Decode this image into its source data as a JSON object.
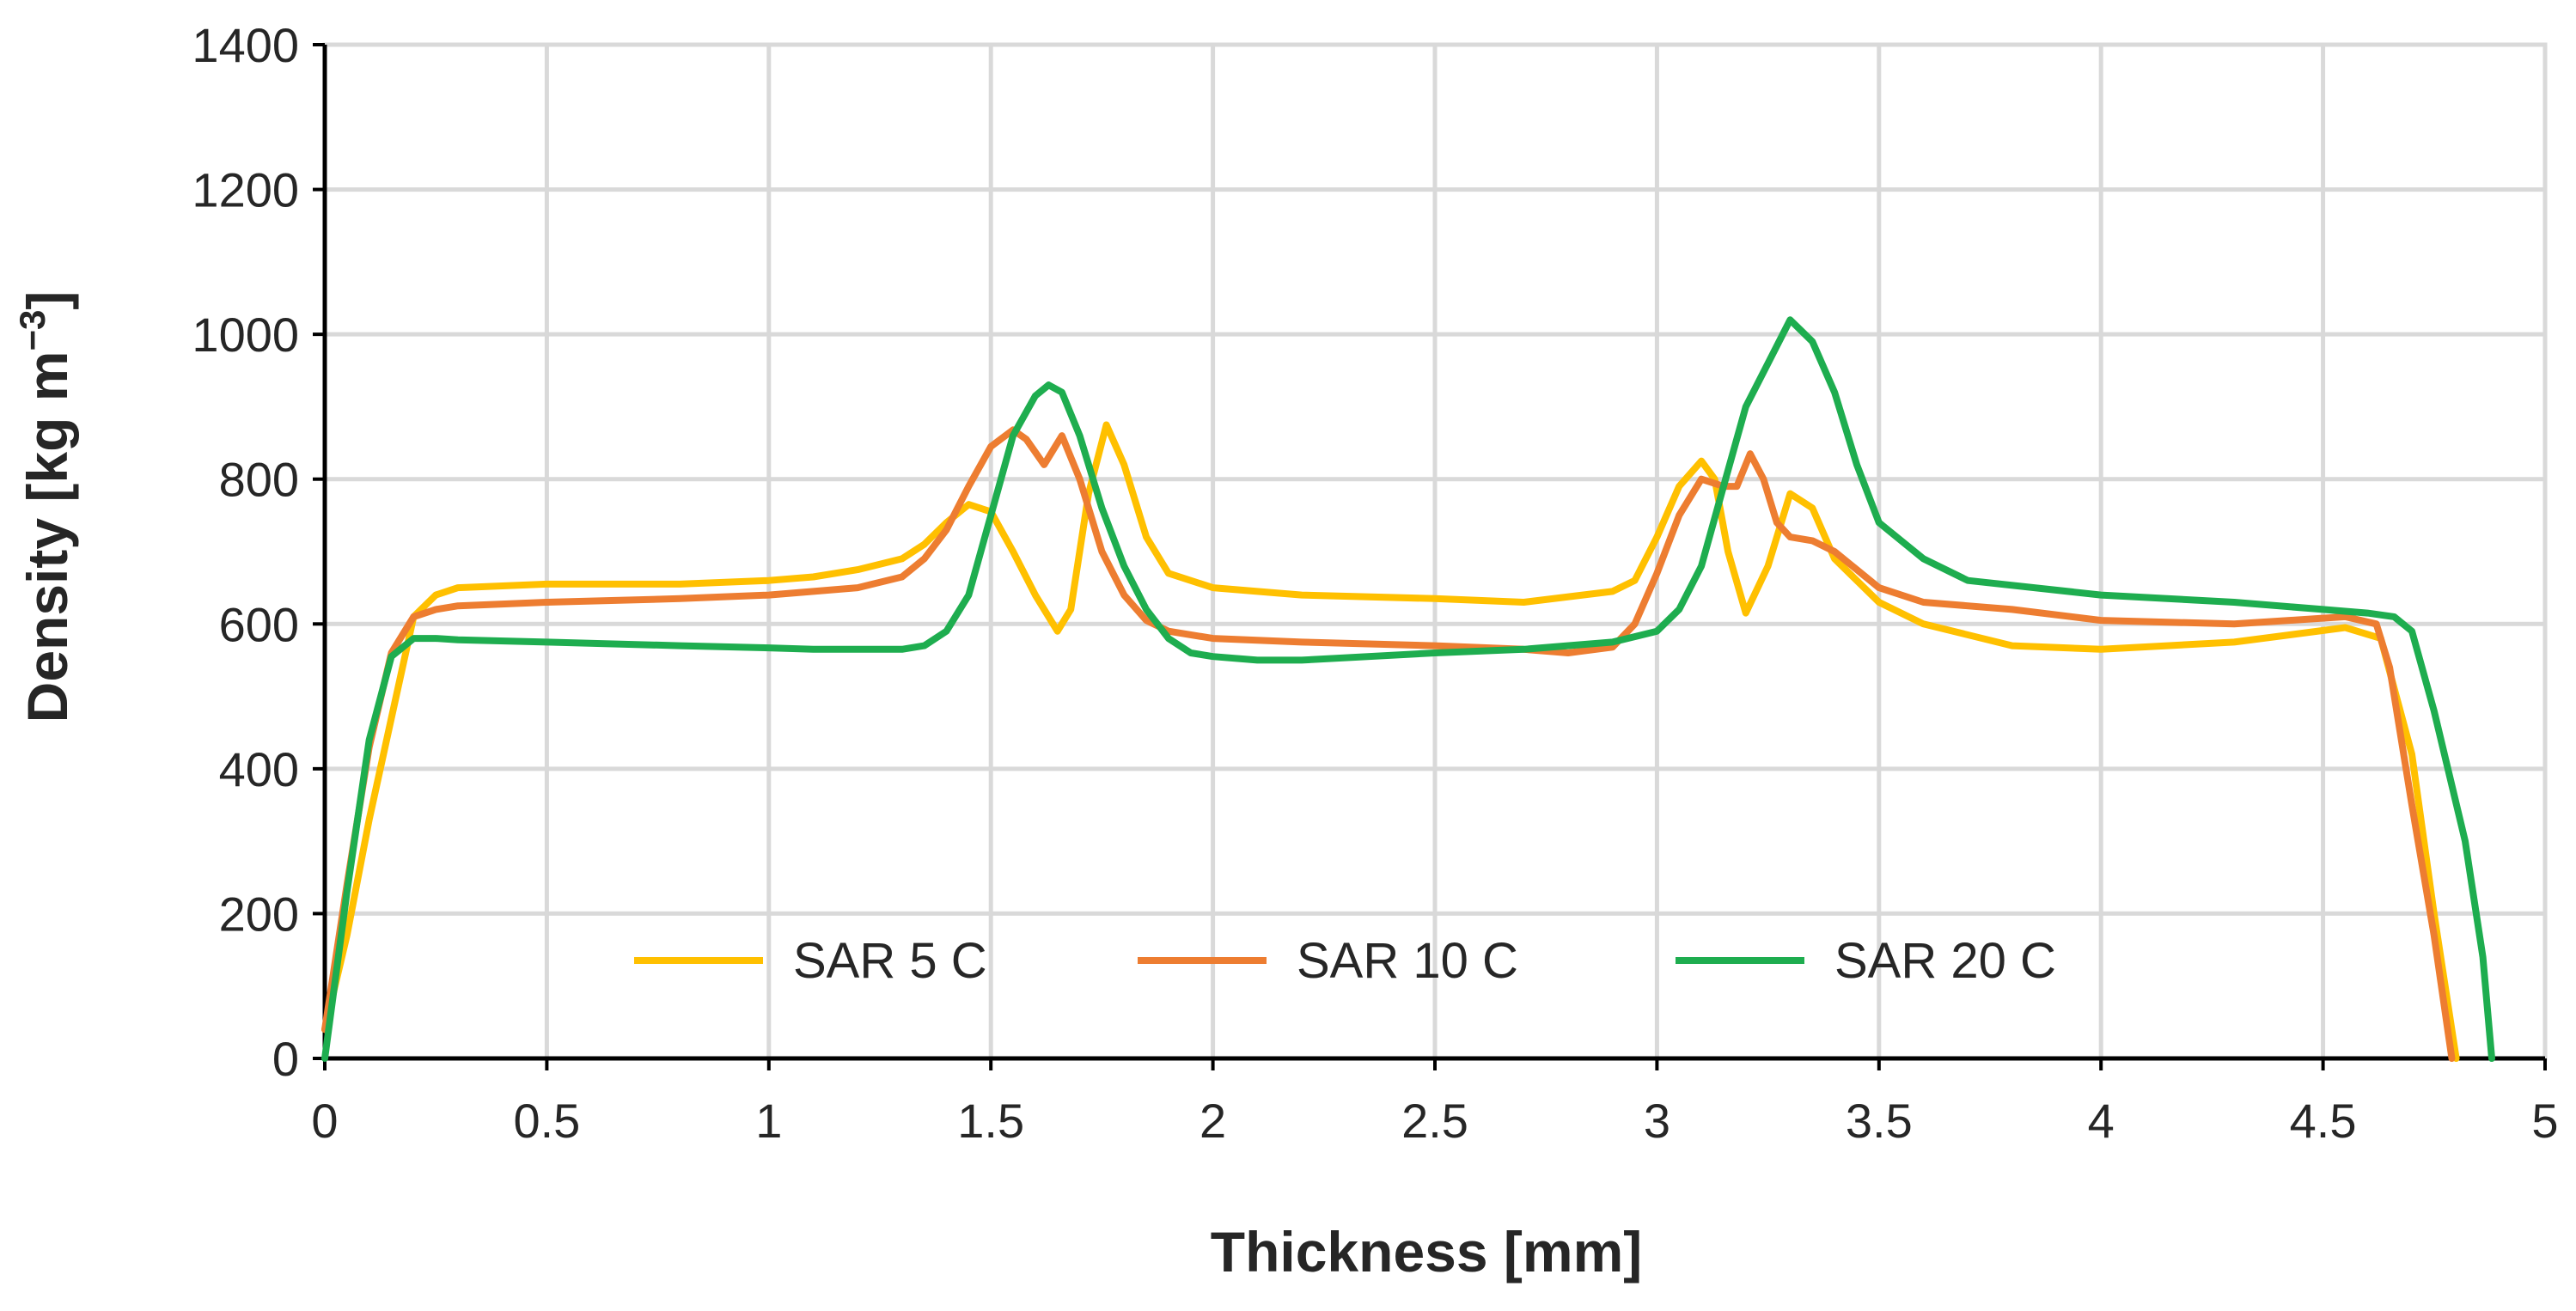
{
  "chart_data": {
    "type": "line",
    "title": "",
    "xlabel": "Thickness [mm]",
    "ylabel_main": "Density [kg m",
    "ylabel_sup": "−3",
    "ylabel_close": "]",
    "xlim": [
      0,
      5
    ],
    "ylim": [
      0,
      1400
    ],
    "xticks": [
      0,
      0.5,
      1,
      1.5,
      2,
      2.5,
      3,
      3.5,
      4,
      4.5,
      5
    ],
    "xtick_labels": [
      "0",
      "0.5",
      "1",
      "1.5",
      "2",
      "2.5",
      "3",
      "3.5",
      "4",
      "4.5",
      "5"
    ],
    "yticks": [
      0,
      200,
      400,
      600,
      800,
      1000,
      1200,
      1400
    ],
    "ytick_labels": [
      "0",
      "200",
      "400",
      "600",
      "800",
      "1000",
      "1200",
      "1400"
    ],
    "grid": true,
    "legend_position": "bottom-center",
    "series": [
      {
        "name": "SAR 5 C",
        "color": "#ffc000",
        "x": [
          0,
          0.05,
          0.1,
          0.15,
          0.2,
          0.25,
          0.3,
          0.5,
          0.8,
          1.0,
          1.1,
          1.2,
          1.3,
          1.35,
          1.4,
          1.45,
          1.5,
          1.55,
          1.6,
          1.65,
          1.68,
          1.72,
          1.76,
          1.8,
          1.85,
          1.9,
          2.0,
          2.2,
          2.5,
          2.7,
          2.9,
          2.95,
          3.0,
          3.05,
          3.1,
          3.13,
          3.16,
          3.2,
          3.25,
          3.3,
          3.35,
          3.4,
          3.5,
          3.6,
          3.8,
          4.0,
          4.3,
          4.55,
          4.63,
          4.7,
          4.75,
          4.8
        ],
        "y": [
          40,
          170,
          330,
          470,
          610,
          640,
          650,
          655,
          655,
          660,
          665,
          675,
          690,
          710,
          740,
          765,
          755,
          700,
          640,
          590,
          620,
          780,
          875,
          820,
          720,
          670,
          650,
          640,
          635,
          630,
          645,
          660,
          720,
          790,
          825,
          800,
          700,
          615,
          680,
          780,
          760,
          690,
          630,
          600,
          570,
          565,
          575,
          595,
          580,
          420,
          200,
          0
        ]
      },
      {
        "name": "SAR 10 C",
        "color": "#ed7d31",
        "x": [
          0,
          0.05,
          0.1,
          0.15,
          0.2,
          0.25,
          0.3,
          0.5,
          0.8,
          1.0,
          1.1,
          1.2,
          1.3,
          1.35,
          1.4,
          1.45,
          1.5,
          1.55,
          1.58,
          1.62,
          1.66,
          1.7,
          1.75,
          1.8,
          1.85,
          1.9,
          2.0,
          2.2,
          2.5,
          2.7,
          2.8,
          2.9,
          2.95,
          3.0,
          3.05,
          3.1,
          3.15,
          3.18,
          3.21,
          3.24,
          3.27,
          3.3,
          3.35,
          3.4,
          3.5,
          3.6,
          3.8,
          4.0,
          4.3,
          4.55,
          4.62,
          4.65,
          4.7,
          4.75,
          4.79
        ],
        "y": [
          40,
          240,
          430,
          560,
          610,
          620,
          625,
          630,
          635,
          640,
          645,
          650,
          665,
          690,
          730,
          790,
          845,
          868,
          855,
          820,
          860,
          800,
          700,
          640,
          605,
          590,
          580,
          575,
          570,
          565,
          560,
          568,
          600,
          670,
          750,
          800,
          790,
          790,
          835,
          800,
          740,
          720,
          715,
          700,
          650,
          630,
          620,
          605,
          600,
          610,
          600,
          540,
          350,
          170,
          0
        ]
      },
      {
        "name": "SAR 20 C",
        "color": "#1ead4f",
        "x": [
          0,
          0.05,
          0.1,
          0.15,
          0.2,
          0.25,
          0.3,
          0.5,
          0.8,
          1.0,
          1.1,
          1.2,
          1.3,
          1.35,
          1.4,
          1.45,
          1.5,
          1.55,
          1.6,
          1.63,
          1.66,
          1.7,
          1.75,
          1.8,
          1.85,
          1.9,
          1.95,
          2.0,
          2.1,
          2.2,
          2.5,
          2.7,
          2.9,
          3.0,
          3.05,
          3.1,
          3.15,
          3.2,
          3.25,
          3.3,
          3.35,
          3.4,
          3.45,
          3.5,
          3.6,
          3.7,
          4.0,
          4.3,
          4.5,
          4.6,
          4.66,
          4.7,
          4.75,
          4.82,
          4.86,
          4.88
        ],
        "y": [
          0,
          230,
          440,
          555,
          580,
          580,
          578,
          575,
          570,
          567,
          565,
          565,
          565,
          570,
          590,
          640,
          750,
          860,
          915,
          930,
          920,
          860,
          760,
          680,
          620,
          580,
          560,
          555,
          550,
          550,
          560,
          565,
          575,
          590,
          620,
          680,
          790,
          900,
          960,
          1020,
          990,
          920,
          820,
          740,
          690,
          660,
          640,
          630,
          620,
          615,
          610,
          590,
          480,
          300,
          140,
          0
        ]
      }
    ]
  }
}
